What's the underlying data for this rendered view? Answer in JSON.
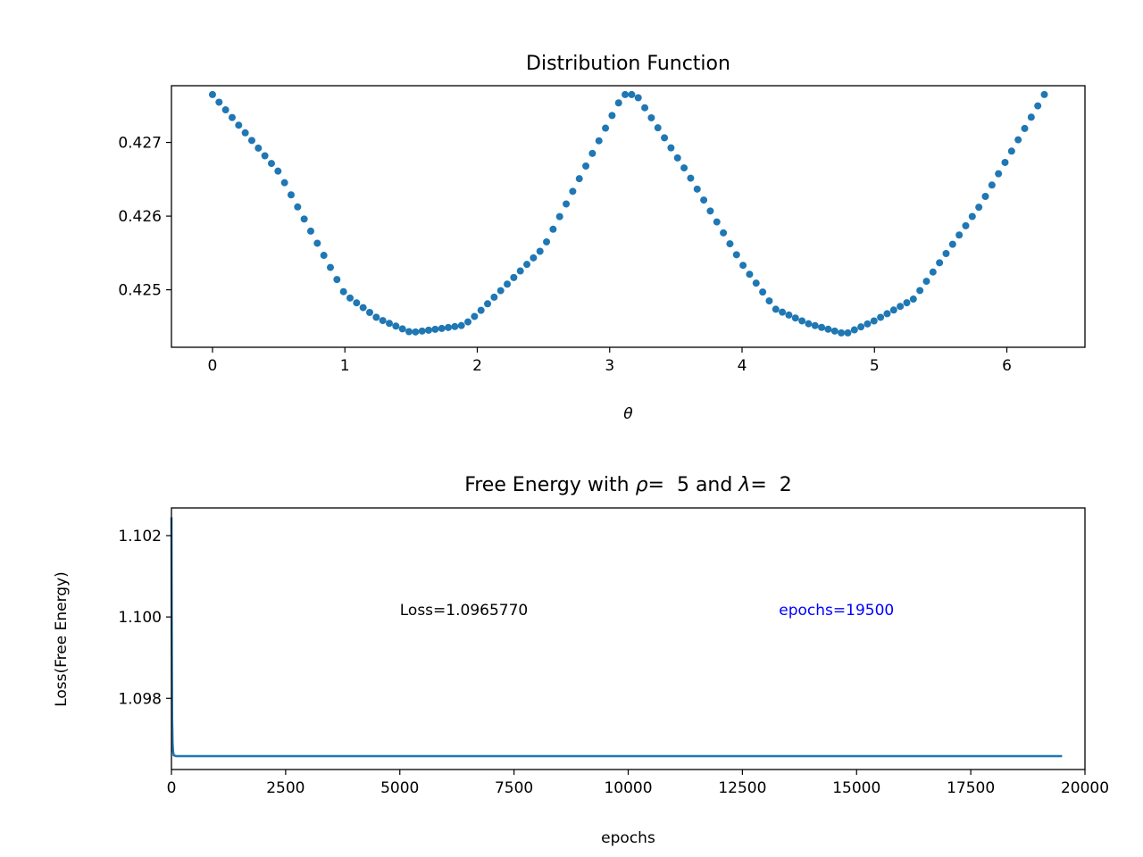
{
  "chart_data": [
    {
      "type": "scatter",
      "title": "Distribution Function",
      "xlabel": "θ",
      "ylabel": "",
      "xlim": [
        -0.31,
        6.59
      ],
      "ylim": [
        0.42422,
        0.42777
      ],
      "xticks": [
        0,
        1,
        2,
        3,
        4,
        5,
        6
      ],
      "xtick_labels": [
        "0",
        "1",
        "2",
        "3",
        "4",
        "5",
        "6"
      ],
      "yticks": [
        0.425,
        0.426,
        0.427
      ],
      "ytick_labels": [
        "0.425",
        "0.426",
        "0.427"
      ],
      "grid": false,
      "color": "#1f77b4",
      "x_range": [
        0,
        6.2832
      ],
      "n_points": 128,
      "y_profile": {
        "x": [
          0,
          0.5,
          1.0,
          1.25,
          1.5,
          1.75,
          1.9,
          2.0,
          2.5,
          3.1,
          3.2,
          3.6,
          4.0,
          4.25,
          4.5,
          4.78,
          5.0,
          5.3,
          5.8,
          6.2832
        ],
        "y": [
          0.42765,
          0.4266,
          0.42494,
          0.42461,
          0.42442,
          0.42448,
          0.42452,
          0.42467,
          0.42557,
          0.42765,
          0.42765,
          0.42655,
          0.42535,
          0.42474,
          0.42454,
          0.4244,
          0.42458,
          0.42488,
          0.42615,
          0.42765
        ]
      }
    },
    {
      "type": "line",
      "title_prefix": "Free Energy with ",
      "title_rho_symbol": "ρ",
      "title_rho_value": "=  5",
      "title_mid": " and ",
      "title_lambda_symbol": "λ",
      "title_lambda_value": "=  2",
      "xlabel": "epochs",
      "ylabel": "Loss(Free Energy)",
      "xlim": [
        0,
        20000
      ],
      "ylim": [
        1.09625,
        1.10268
      ],
      "xticks": [
        0,
        2500,
        5000,
        7500,
        10000,
        12500,
        15000,
        17500,
        20000
      ],
      "xtick_labels": [
        "0",
        "2500",
        "5000",
        "7500",
        "10000",
        "12500",
        "15000",
        "17500",
        "20000"
      ],
      "yticks": [
        1.098,
        1.1,
        1.102
      ],
      "ytick_labels": [
        "1.098",
        "1.100",
        "1.102"
      ],
      "grid": false,
      "color": "#1f77b4",
      "series": [
        {
          "x": [
            0,
            5,
            10,
            15,
            25,
            35,
            50,
            100,
            1000,
            5000,
            10000,
            15000,
            19500
          ],
          "y": [
            1.10245,
            1.1002,
            1.0988,
            1.0975,
            1.0969,
            1.0967,
            1.0966,
            1.09658,
            1.09658,
            1.09658,
            1.09658,
            1.09658,
            1.09658
          ]
        }
      ],
      "annotations": [
        {
          "text": "Loss=1.0965770",
          "x": 5000,
          "y": 1.1,
          "color": "#000000"
        },
        {
          "text": "epochs=19500",
          "x": 13300,
          "y": 1.1,
          "color": "#0000ff"
        }
      ]
    }
  ]
}
